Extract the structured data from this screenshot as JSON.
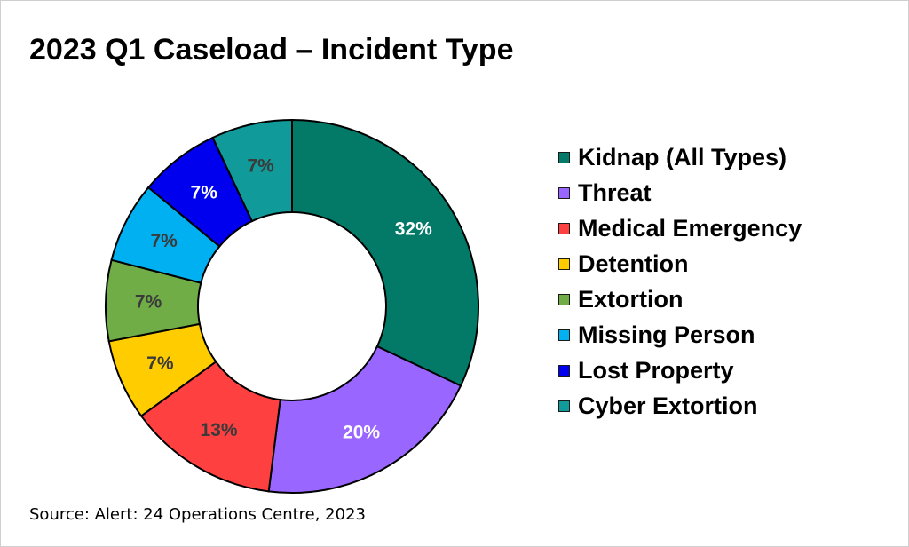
{
  "chart_data": {
    "type": "pie",
    "title": "2023 Q1 Caseload – Incident Type",
    "donut": true,
    "legend_position": "right",
    "slices": [
      {
        "label": "Kidnap (All Types)",
        "value": 32,
        "data_label": "32%",
        "color": "#037a68",
        "label_color": "#ffffff"
      },
      {
        "label": "Threat",
        "value": 20,
        "data_label": "20%",
        "color": "#9966ff",
        "label_color": "#ffffff"
      },
      {
        "label": "Medical Emergency",
        "value": 13,
        "data_label": "13%",
        "color": "#ff4040",
        "label_color": "#3a3a3a"
      },
      {
        "label": "Detention",
        "value": 7,
        "data_label": "7%",
        "color": "#ffcc00",
        "label_color": "#3a3a3a"
      },
      {
        "label": "Extortion",
        "value": 7,
        "data_label": "7%",
        "color": "#70ad47",
        "label_color": "#3a3a3a"
      },
      {
        "label": "Missing Person",
        "value": 7,
        "data_label": "7%",
        "color": "#00b0f0",
        "label_color": "#3a3a3a"
      },
      {
        "label": "Lost Property",
        "value": 7,
        "data_label": "7%",
        "color": "#0000ee",
        "label_color": "#ffffff"
      },
      {
        "label": "Cyber Extortion",
        "value": 7,
        "data_label": "7%",
        "color": "#109a9a",
        "label_color": "#3a3a3a"
      }
    ]
  },
  "source": "Source: Alert: 24 Operations Centre, 2023"
}
